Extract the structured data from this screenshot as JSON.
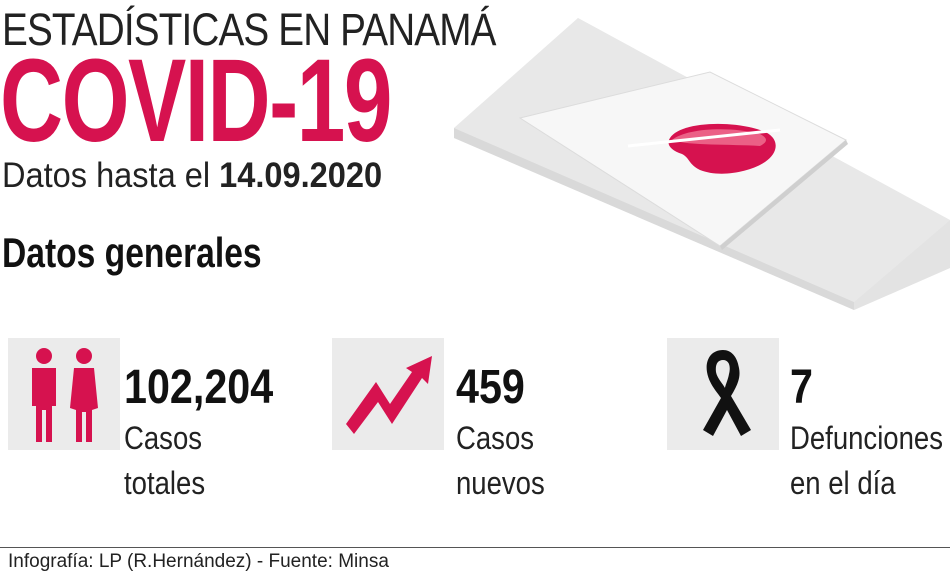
{
  "header": {
    "kicker": "ESTADÍSTICAS EN PANAMÁ",
    "title": "COVID-19",
    "date_prefix": "Datos hasta el",
    "date": "14.09.2020"
  },
  "section": {
    "title": "Datos generales"
  },
  "stats": [
    {
      "icon": "people-icon",
      "value": "102,204",
      "label_line1": "Casos",
      "label_line2": "totales"
    },
    {
      "icon": "trend-up-arrow-icon",
      "value": "459",
      "label_line1": "Casos",
      "label_line2": "nuevos"
    },
    {
      "icon": "mourning-ribbon-icon",
      "value": "7",
      "label_line1": "Defunciones",
      "label_line2": "en el día"
    }
  ],
  "footer": {
    "credit": "Infografía: LP (R.Hernández) - Fuente: Minsa"
  },
  "colors": {
    "accent": "#d6124f",
    "icon_background": "#ebebeb",
    "text": "#111111"
  }
}
